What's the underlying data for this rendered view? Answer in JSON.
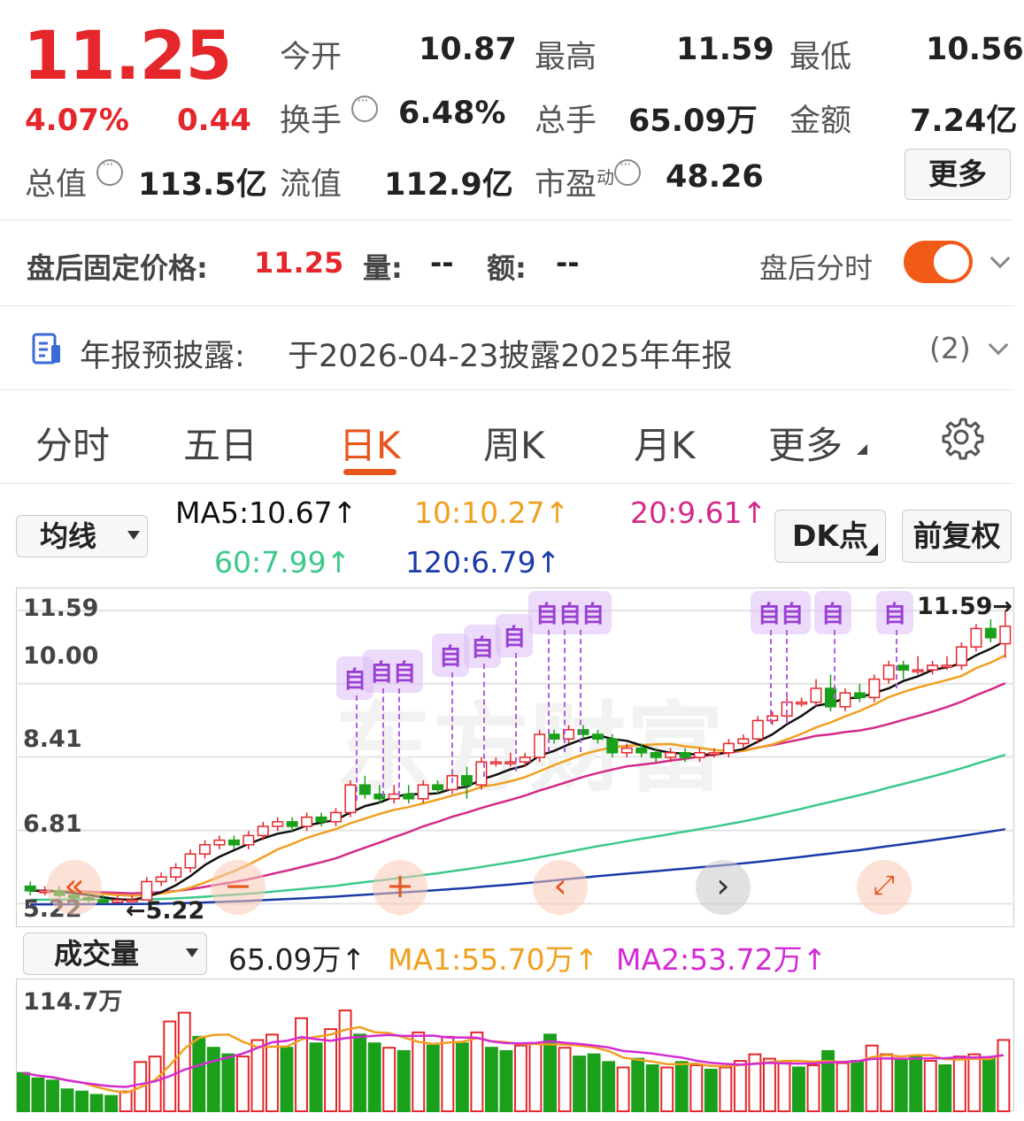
{
  "quote": {
    "price": "11.25",
    "change_pct": "4.07%",
    "change_amt": "0.44",
    "open_label": "今开",
    "open": "10.87",
    "high_label": "最高",
    "high": "11.59",
    "low_label": "最低",
    "low": "10.56",
    "turnover_label": "换手",
    "turnover": "6.48%",
    "volume_label": "总手",
    "volume": "65.09万",
    "amount_label": "金额",
    "amount": "7.24亿",
    "mktcap_label": "总值",
    "mktcap": "113.5亿",
    "float_label": "流值",
    "float": "112.9亿",
    "pe_label": "市盈",
    "pe_sup": "动",
    "pe": "48.26",
    "more_button": "更多"
  },
  "after_hours": {
    "price_label": "盘后固定价格:",
    "price": "11.25",
    "vol_label": "量:",
    "vol": "--",
    "amt_label": "额:",
    "amt": "--",
    "toggle_label": "盘后分时",
    "toggle_on": true
  },
  "notice": {
    "label": "年报预披露:",
    "text": "于2026-04-23披露2025年年报",
    "count": "(2)"
  },
  "tabs": [
    {
      "label": "分时"
    },
    {
      "label": "五日"
    },
    {
      "label": "日K"
    },
    {
      "label": "周K"
    },
    {
      "label": "月K"
    },
    {
      "label": "更多"
    }
  ],
  "active_tab": "日K",
  "ma_bar": {
    "selector": "均线",
    "ma5": "MA5:10.67↑",
    "ma10": "10:10.27↑",
    "ma20": "20:9.61↑",
    "ma60": "60:7.99↑",
    "ma120": "120:6.79↑",
    "dk_button": "DK点",
    "adjust_button": "前复权",
    "colors": {
      "ma5": "#111111",
      "ma10": "#f0a020",
      "ma20": "#d42a8a",
      "ma60": "#3cc88a",
      "ma120": "#1a3aa8"
    }
  },
  "price_chart": {
    "y_labels": [
      "11.59",
      "10.00",
      "8.41",
      "6.81",
      "5.22"
    ],
    "high_marker": "11.59→",
    "low_marker": "5.22",
    "badge_char": "自",
    "badges": [
      "自",
      "自自",
      "自",
      "自",
      "自",
      "自自自",
      "自自",
      "自",
      "自"
    ],
    "watermark": "东方财富"
  },
  "volume_bar": {
    "selector": "成交量",
    "vol": "65.09万↑",
    "ma1": "MA1:55.70万↑",
    "ma2": "MA2:53.72万↑",
    "max_label": "114.7万",
    "colors": {
      "ma1": "#f0a020",
      "ma2": "#d42ad4",
      "up": "#e5262b",
      "down": "#1aa01a"
    }
  },
  "chart_data": {
    "type": "candlestick",
    "y_range": [
      5.22,
      11.59
    ],
    "candles": [
      [
        5.6,
        5.5,
        5.7,
        5.4
      ],
      [
        5.5,
        5.5,
        5.6,
        5.4
      ],
      [
        5.5,
        5.4,
        5.6,
        5.35
      ],
      [
        5.4,
        5.35,
        5.5,
        5.3
      ],
      [
        5.35,
        5.3,
        5.45,
        5.25
      ],
      [
        5.3,
        5.25,
        5.4,
        5.22
      ],
      [
        5.25,
        5.3,
        5.4,
        5.22
      ],
      [
        5.3,
        5.3,
        5.4,
        5.25
      ],
      [
        5.3,
        5.7,
        5.8,
        5.3
      ],
      [
        5.7,
        5.8,
        5.9,
        5.6
      ],
      [
        5.8,
        6.0,
        6.1,
        5.7
      ],
      [
        6.0,
        6.3,
        6.4,
        5.9
      ],
      [
        6.3,
        6.5,
        6.6,
        6.2
      ],
      [
        6.5,
        6.6,
        6.7,
        6.4
      ],
      [
        6.6,
        6.5,
        6.7,
        6.4
      ],
      [
        6.5,
        6.7,
        6.8,
        6.4
      ],
      [
        6.7,
        6.9,
        7.0,
        6.6
      ],
      [
        6.9,
        7.0,
        7.1,
        6.8
      ],
      [
        7.0,
        6.9,
        7.1,
        6.8
      ],
      [
        6.9,
        7.1,
        7.2,
        6.8
      ],
      [
        7.1,
        7.0,
        7.2,
        6.9
      ],
      [
        7.0,
        7.2,
        7.3,
        6.9
      ],
      [
        7.2,
        7.8,
        7.9,
        7.1
      ],
      [
        7.8,
        7.6,
        8.0,
        7.5
      ],
      [
        7.6,
        7.5,
        7.8,
        7.4
      ],
      [
        7.5,
        7.6,
        7.8,
        7.4
      ],
      [
        7.6,
        7.5,
        7.8,
        7.4
      ],
      [
        7.5,
        7.8,
        7.9,
        7.4
      ],
      [
        7.8,
        7.7,
        7.9,
        7.6
      ],
      [
        7.7,
        8.0,
        8.1,
        7.6
      ],
      [
        8.0,
        7.8,
        8.2,
        7.5
      ],
      [
        7.8,
        8.3,
        8.4,
        7.7
      ],
      [
        8.3,
        8.3,
        8.4,
        8.2
      ],
      [
        8.3,
        8.3,
        8.5,
        8.2
      ],
      [
        8.3,
        8.4,
        8.5,
        8.2
      ],
      [
        8.4,
        8.9,
        9.0,
        8.3
      ],
      [
        8.9,
        8.8,
        9.0,
        8.7
      ],
      [
        8.8,
        9.0,
        9.1,
        8.7
      ],
      [
        9.0,
        8.9,
        9.1,
        8.8
      ],
      [
        8.9,
        8.8,
        9.0,
        8.7
      ],
      [
        8.8,
        8.5,
        8.9,
        8.4
      ],
      [
        8.5,
        8.6,
        8.7,
        8.4
      ],
      [
        8.6,
        8.5,
        8.7,
        8.4
      ],
      [
        8.5,
        8.4,
        8.6,
        8.3
      ],
      [
        8.4,
        8.5,
        8.6,
        8.3
      ],
      [
        8.5,
        8.4,
        8.6,
        8.3
      ],
      [
        8.4,
        8.5,
        8.6,
        8.3
      ],
      [
        8.5,
        8.5,
        8.6,
        8.4
      ],
      [
        8.5,
        8.7,
        8.8,
        8.4
      ],
      [
        8.7,
        8.8,
        8.9,
        8.6
      ],
      [
        8.8,
        9.2,
        9.3,
        8.7
      ],
      [
        9.2,
        9.3,
        9.4,
        9.1
      ],
      [
        9.3,
        9.6,
        9.7,
        9.2
      ],
      [
        9.6,
        9.6,
        9.7,
        9.5
      ],
      [
        9.6,
        9.9,
        10.1,
        9.5
      ],
      [
        9.9,
        9.5,
        10.2,
        9.4
      ],
      [
        9.5,
        9.8,
        9.9,
        9.4
      ],
      [
        9.8,
        9.7,
        10.0,
        9.6
      ],
      [
        9.7,
        10.1,
        10.2,
        9.6
      ],
      [
        10.1,
        10.4,
        10.5,
        10.0
      ],
      [
        10.4,
        10.3,
        10.5,
        10.1
      ],
      [
        10.3,
        10.3,
        10.6,
        10.2
      ],
      [
        10.3,
        10.4,
        10.5,
        10.2
      ],
      [
        10.4,
        10.4,
        10.6,
        10.3
      ],
      [
        10.4,
        10.8,
        10.9,
        10.3
      ],
      [
        10.8,
        11.2,
        11.3,
        10.7
      ],
      [
        11.2,
        11.0,
        11.4,
        10.9
      ],
      [
        10.87,
        11.25,
        11.59,
        10.56
      ]
    ],
    "candle_fields": [
      "open",
      "close",
      "high",
      "low"
    ],
    "volume_max": 114.7,
    "volumes": [
      35,
      30,
      28,
      20,
      18,
      15,
      14,
      18,
      45,
      50,
      82,
      90,
      68,
      58,
      52,
      50,
      65,
      70,
      58,
      85,
      62,
      75,
      92,
      70,
      62,
      58,
      55,
      72,
      60,
      68,
      62,
      72,
      58,
      55,
      60,
      62,
      70,
      58,
      50,
      52,
      45,
      40,
      48,
      42,
      40,
      45,
      42,
      38,
      40,
      46,
      52,
      48,
      44,
      40,
      42,
      55,
      44,
      46,
      60,
      52,
      48,
      50,
      46,
      42,
      50,
      52,
      48,
      65.09
    ],
    "volume_up": [
      0,
      0,
      0,
      0,
      0,
      0,
      0,
      1,
      1,
      1,
      1,
      1,
      0,
      0,
      0,
      1,
      1,
      1,
      0,
      1,
      0,
      1,
      1,
      0,
      0,
      1,
      0,
      1,
      0,
      1,
      0,
      1,
      0,
      0,
      1,
      1,
      0,
      1,
      0,
      0,
      0,
      1,
      0,
      0,
      1,
      0,
      1,
      0,
      1,
      1,
      1,
      1,
      1,
      0,
      1,
      0,
      1,
      0,
      1,
      1,
      0,
      0,
      1,
      0,
      1,
      1,
      0,
      1
    ]
  }
}
